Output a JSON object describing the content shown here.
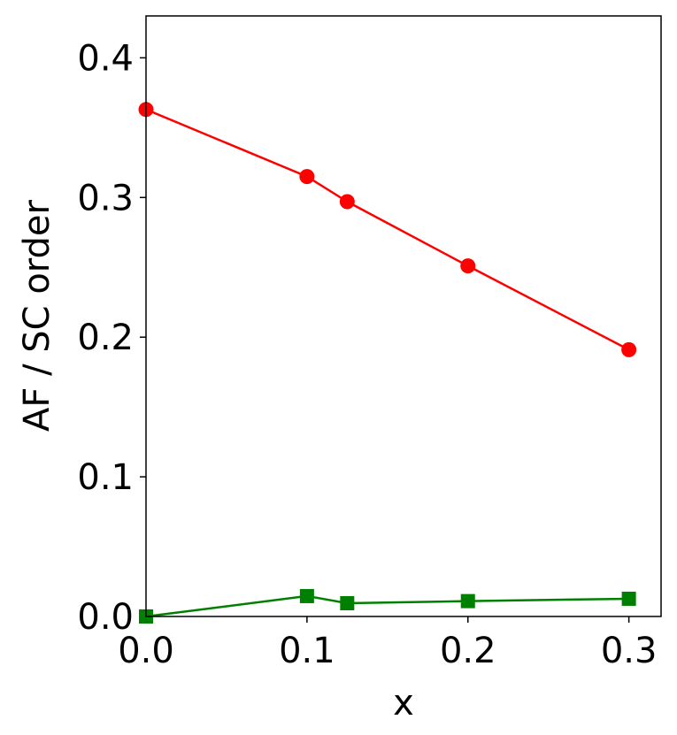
{
  "chart_data": {
    "type": "line",
    "xlabel": "x",
    "ylabel": "AF / SC order",
    "xlim": [
      0,
      0.32
    ],
    "ylim": [
      0,
      0.43
    ],
    "xticks": [
      {
        "value": 0,
        "label": "0.0"
      },
      0.1,
      0.2,
      0.3
    ],
    "yticks": [
      {
        "value": 0,
        "label": "0.0"
      },
      0.1,
      0.2,
      0.3,
      0.4
    ],
    "x": [
      0,
      0.1,
      0.125,
      0.2,
      0.3
    ],
    "series": [
      {
        "color": "#ff0000",
        "marker": "circle",
        "values": [
          0.363,
          0.315,
          0.297,
          0.251,
          0.191
        ]
      },
      {
        "color": "#008000",
        "marker": "square",
        "values": [
          0.0,
          0.0146,
          0.0095,
          0.011,
          0.0127
        ]
      }
    ]
  }
}
